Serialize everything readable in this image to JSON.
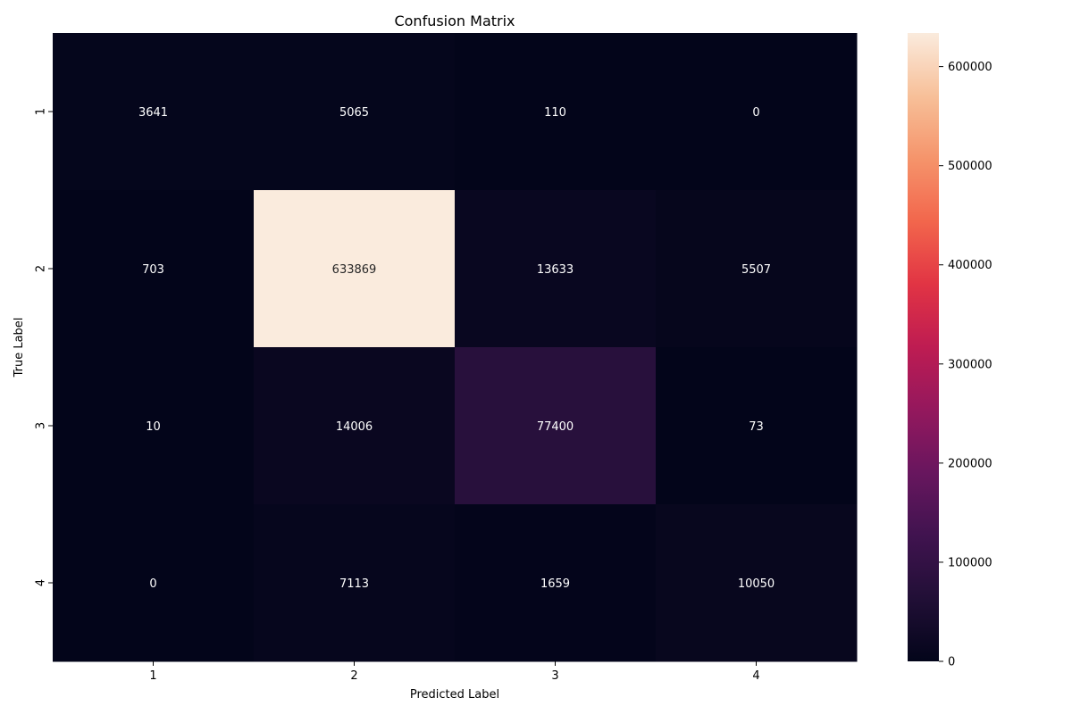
{
  "chart_data": {
    "type": "heatmap",
    "title": "Confusion Matrix",
    "xlabel": "Predicted Label",
    "ylabel": "True Label",
    "x_categories": [
      "1",
      "2",
      "3",
      "4"
    ],
    "y_categories": [
      "1",
      "2",
      "3",
      "4"
    ],
    "matrix": [
      [
        3641,
        5065,
        110,
        0
      ],
      [
        703,
        633869,
        13633,
        5507
      ],
      [
        10,
        14006,
        77400,
        73
      ],
      [
        0,
        7113,
        1659,
        10050
      ]
    ],
    "colorbar": {
      "range": [
        0,
        633869
      ],
      "ticks": [
        0,
        100000,
        200000,
        300000,
        400000,
        500000,
        600000
      ],
      "tick_labels": [
        "0",
        "100000",
        "200000",
        "300000",
        "400000",
        "500000",
        "600000"
      ],
      "colormap": "rocket"
    },
    "grid": false,
    "legend": "colorbar-right"
  }
}
